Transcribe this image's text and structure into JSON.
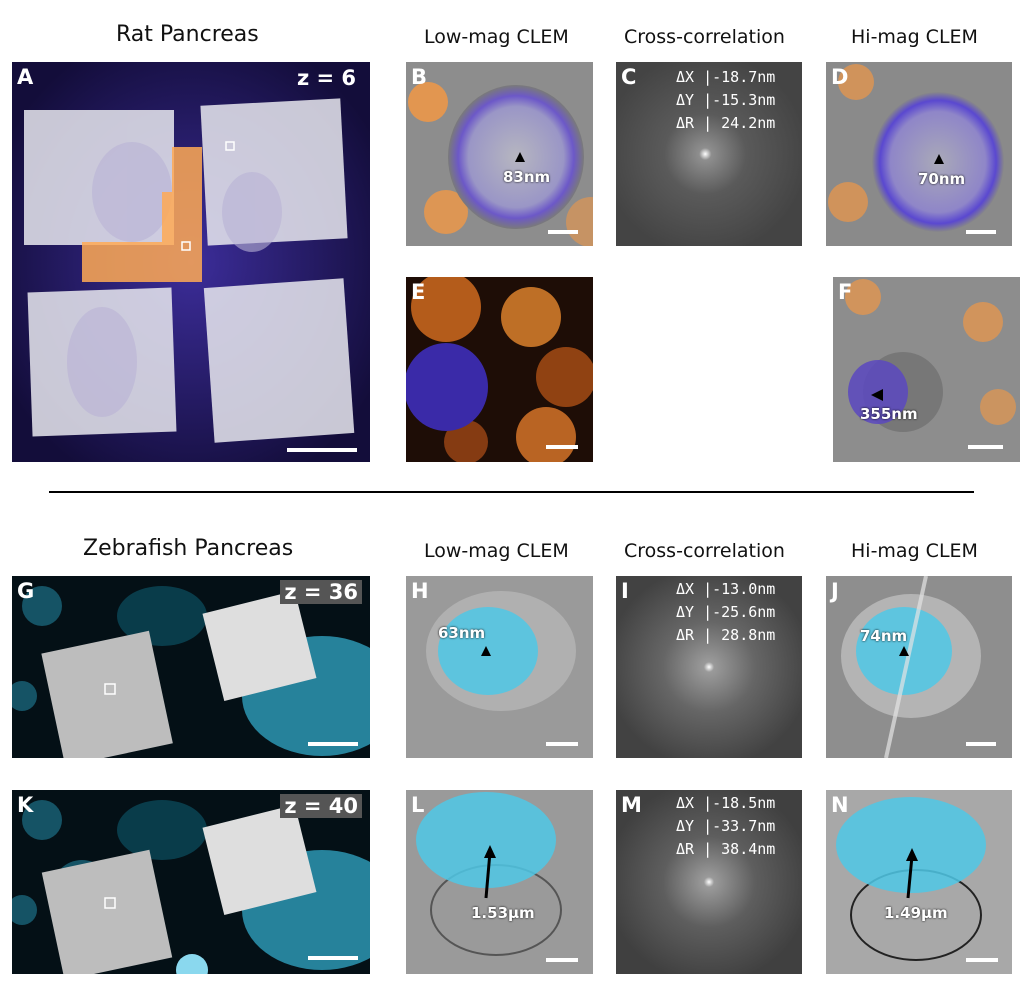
{
  "sections": {
    "rat_title": "Rat Pancreas",
    "zebra_title": "Zebrafish Pancreas"
  },
  "columns": {
    "low": "Low-mag CLEM",
    "cross": "Cross-correlation",
    "hi": "Hi-mag CLEM"
  },
  "panels": {
    "A": {
      "label": "A",
      "z": "z = 6"
    },
    "B": {
      "label": "B",
      "measure": "83nm"
    },
    "C": {
      "label": "C",
      "dx": "ΔX |-18.7nm",
      "dy": "ΔY |-15.3nm",
      "dr": "ΔR | 24.2nm"
    },
    "D": {
      "label": "D",
      "measure": "70nm"
    },
    "E": {
      "label": "E"
    },
    "F": {
      "label": "F",
      "measure": "355nm"
    },
    "G": {
      "label": "G",
      "z": "z = 36"
    },
    "H": {
      "label": "H",
      "measure": "63nm"
    },
    "I": {
      "label": "I",
      "dx": "ΔX |-13.0nm",
      "dy": "ΔY |-25.6nm",
      "dr": "ΔR | 28.8nm"
    },
    "J": {
      "label": "J",
      "measure": "74nm"
    },
    "K": {
      "label": "K",
      "z": "z = 40"
    },
    "L": {
      "label": "L",
      "measure": "1.53µm"
    },
    "M": {
      "label": "M",
      "dx": "ΔX |-18.5nm",
      "dy": "ΔY |-33.7nm",
      "dr": "ΔR | 38.4nm"
    },
    "N": {
      "label": "N",
      "measure": "1.49µm"
    }
  },
  "colors": {
    "purple": "#3b2a8c",
    "orange": "#ff9a3c",
    "cyan": "#4fc8e6"
  }
}
